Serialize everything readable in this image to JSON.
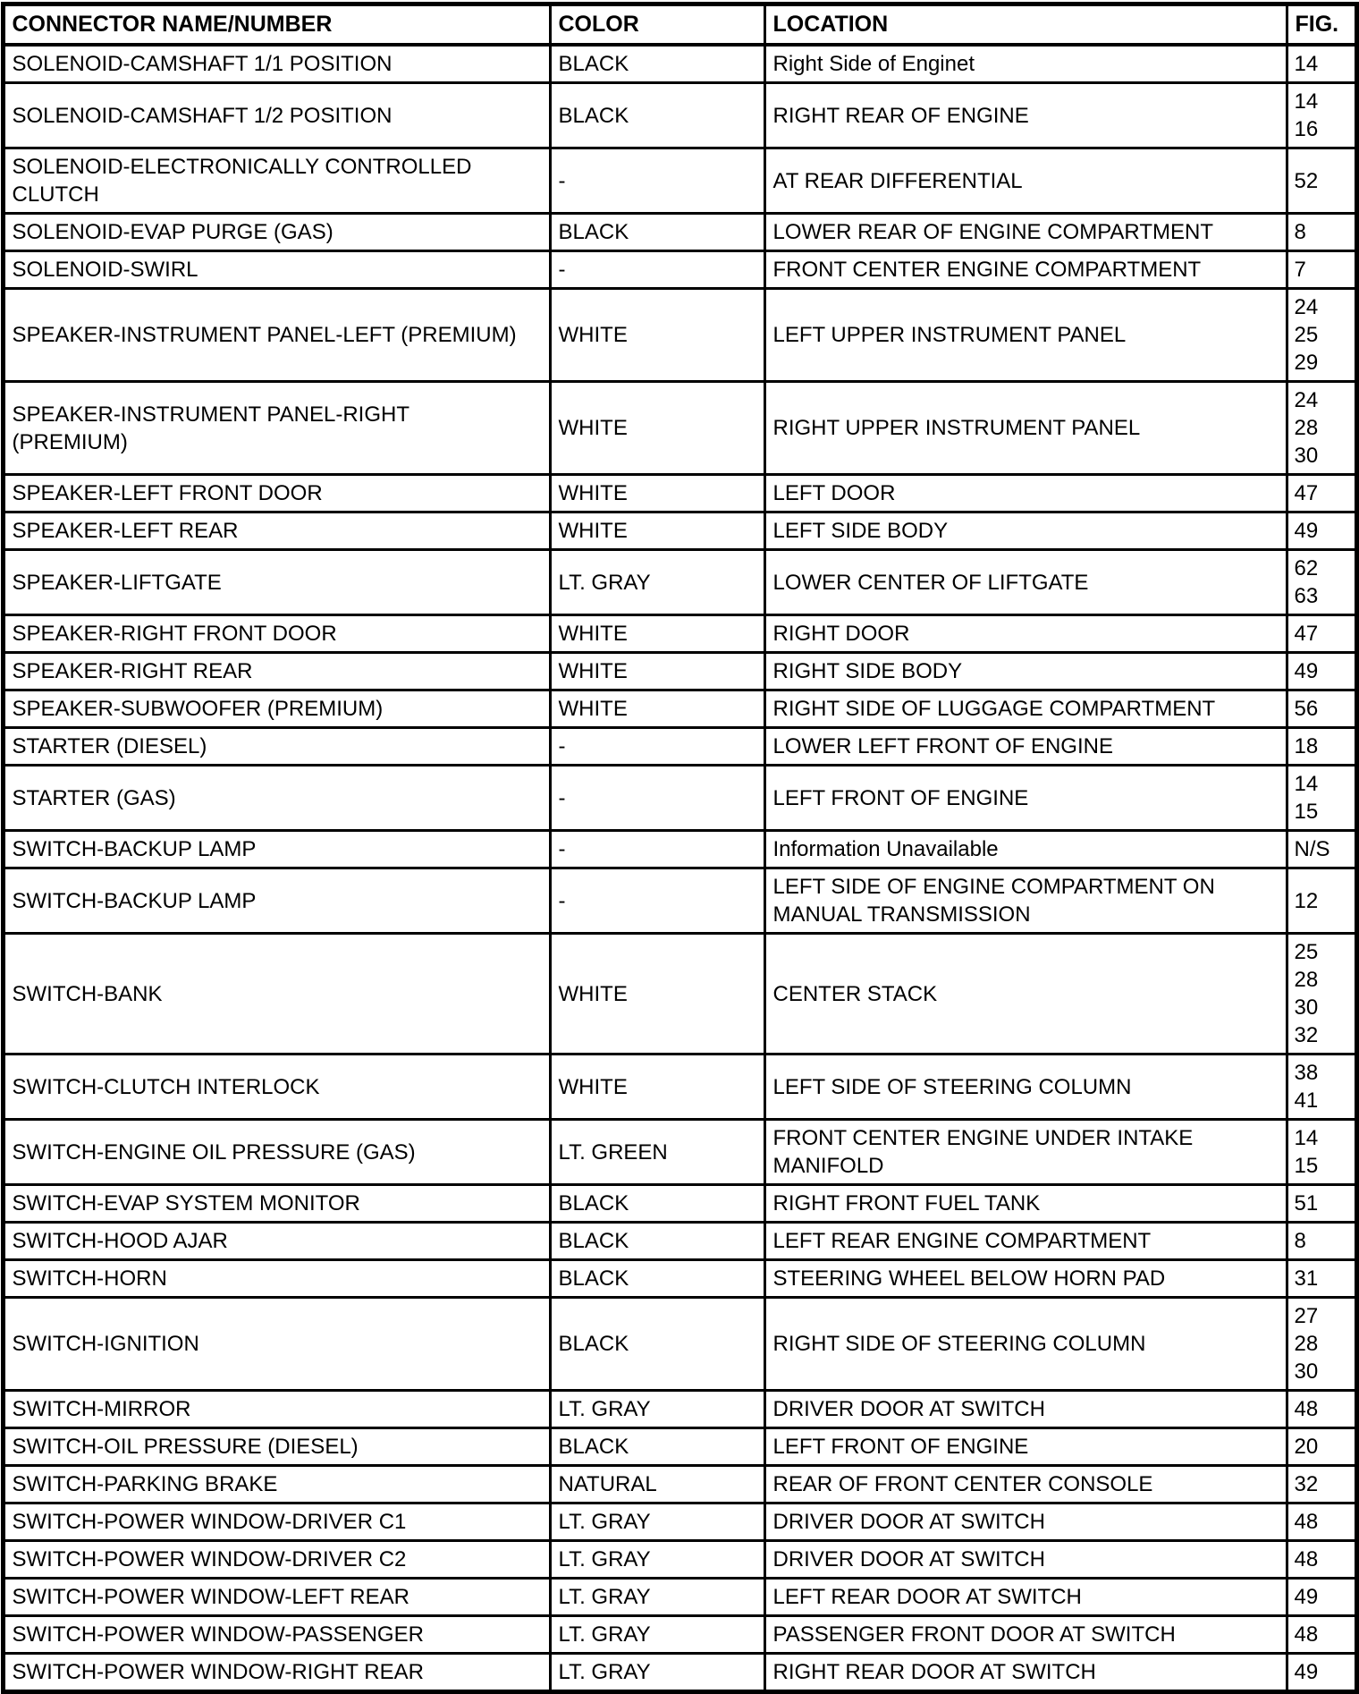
{
  "table": {
    "headers": [
      "CONNECTOR NAME/NUMBER",
      "COLOR",
      "LOCATION",
      "FIG."
    ],
    "rows": [
      {
        "name": "SOLENOID-CAMSHAFT 1/1 POSITION",
        "color": "BLACK",
        "location": "Right Side of Enginet",
        "fig": "14"
      },
      {
        "name": "SOLENOID-CAMSHAFT 1/2 POSITION",
        "color": "BLACK",
        "location": "RIGHT REAR OF ENGINE",
        "fig": "14\n16"
      },
      {
        "name": "SOLENOID-ELECTRONICALLY CONTROLLED\nCLUTCH",
        "color": "-",
        "location": "AT REAR DIFFERENTIAL",
        "fig": "52"
      },
      {
        "name": "SOLENOID-EVAP PURGE (GAS)",
        "color": "BLACK",
        "location": "LOWER REAR OF ENGINE COMPARTMENT",
        "fig": "8"
      },
      {
        "name": "SOLENOID-SWIRL",
        "color": "-",
        "location": "FRONT CENTER ENGINE COMPARTMENT",
        "fig": "7"
      },
      {
        "name": "SPEAKER-INSTRUMENT PANEL-LEFT (PREMIUM)",
        "color": "WHITE",
        "location": "LEFT UPPER INSTRUMENT PANEL",
        "fig": "24\n25\n29"
      },
      {
        "name": "SPEAKER-INSTRUMENT PANEL-RIGHT\n(PREMIUM)",
        "color": "WHITE",
        "location": "RIGHT UPPER INSTRUMENT PANEL",
        "fig": "24\n28\n30"
      },
      {
        "name": "SPEAKER-LEFT FRONT DOOR",
        "color": "WHITE",
        "location": "LEFT DOOR",
        "fig": "47"
      },
      {
        "name": "SPEAKER-LEFT REAR",
        "color": "WHITE",
        "location": "LEFT SIDE BODY",
        "fig": "49"
      },
      {
        "name": "SPEAKER-LIFTGATE",
        "color": "LT. GRAY",
        "location": "LOWER CENTER OF LIFTGATE",
        "fig": "62\n63"
      },
      {
        "name": "SPEAKER-RIGHT FRONT DOOR",
        "color": "WHITE",
        "location": "RIGHT DOOR",
        "fig": "47"
      },
      {
        "name": "SPEAKER-RIGHT REAR",
        "color": "WHITE",
        "location": "RIGHT SIDE BODY",
        "fig": "49"
      },
      {
        "name": "SPEAKER-SUBWOOFER (PREMIUM)",
        "color": "WHITE",
        "location": "RIGHT SIDE OF LUGGAGE COMPARTMENT",
        "fig": "56"
      },
      {
        "name": "STARTER (DIESEL)",
        "color": "-",
        "location": "LOWER LEFT FRONT OF ENGINE",
        "fig": "18"
      },
      {
        "name": "STARTER (GAS)",
        "color": "-",
        "location": "LEFT FRONT OF ENGINE",
        "fig": "14\n15"
      },
      {
        "name": "SWITCH-BACKUP LAMP",
        "color": "-",
        "location": "Information Unavailable",
        "fig": "N/S"
      },
      {
        "name": "SWITCH-BACKUP LAMP",
        "color": "-",
        "location": "LEFT SIDE OF ENGINE COMPARTMENT ON\nMANUAL TRANSMISSION",
        "fig": "12"
      },
      {
        "name": "SWITCH-BANK",
        "color": "WHITE",
        "location": "CENTER STACK",
        "fig": "25\n28\n30\n32"
      },
      {
        "name": "SWITCH-CLUTCH INTERLOCK",
        "color": "WHITE",
        "location": "LEFT SIDE OF STEERING COLUMN",
        "fig": "38\n41"
      },
      {
        "name": "SWITCH-ENGINE OIL PRESSURE (GAS)",
        "color": "LT. GREEN",
        "location": "FRONT CENTER ENGINE UNDER INTAKE\nMANIFOLD",
        "fig": "14\n15"
      },
      {
        "name": "SWITCH-EVAP SYSTEM MONITOR",
        "color": "BLACK",
        "location": "RIGHT FRONT FUEL TANK",
        "fig": "51"
      },
      {
        "name": "SWITCH-HOOD AJAR",
        "color": "BLACK",
        "location": "LEFT REAR ENGINE COMPARTMENT",
        "fig": "8"
      },
      {
        "name": "SWITCH-HORN",
        "color": "BLACK",
        "location": "STEERING WHEEL BELOW HORN PAD",
        "fig": "31"
      },
      {
        "name": "SWITCH-IGNITION",
        "color": "BLACK",
        "location": "RIGHT SIDE OF STEERING COLUMN",
        "fig": "27\n28\n30"
      },
      {
        "name": "SWITCH-MIRROR",
        "color": "LT. GRAY",
        "location": "DRIVER DOOR AT SWITCH",
        "fig": "48"
      },
      {
        "name": "SWITCH-OIL PRESSURE (DIESEL)",
        "color": "BLACK",
        "location": "LEFT FRONT OF ENGINE",
        "fig": "20"
      },
      {
        "name": "SWITCH-PARKING BRAKE",
        "color": "NATURAL",
        "location": "REAR OF FRONT CENTER CONSOLE",
        "fig": "32"
      },
      {
        "name": "SWITCH-POWER WINDOW-DRIVER C1",
        "color": "LT. GRAY",
        "location": "DRIVER DOOR AT SWITCH",
        "fig": "48"
      },
      {
        "name": "SWITCH-POWER WINDOW-DRIVER C2",
        "color": "LT. GRAY",
        "location": "DRIVER DOOR AT SWITCH",
        "fig": "48"
      },
      {
        "name": "SWITCH-POWER WINDOW-LEFT REAR",
        "color": "LT. GRAY",
        "location": "LEFT REAR DOOR AT SWITCH",
        "fig": "49"
      },
      {
        "name": "SWITCH-POWER WINDOW-PASSENGER",
        "color": "LT. GRAY",
        "location": "PASSENGER FRONT DOOR AT SWITCH",
        "fig": "48"
      },
      {
        "name": "SWITCH-POWER WINDOW-RIGHT REAR",
        "color": "LT. GRAY",
        "location": "RIGHT REAR DOOR AT SWITCH",
        "fig": "49"
      }
    ]
  }
}
